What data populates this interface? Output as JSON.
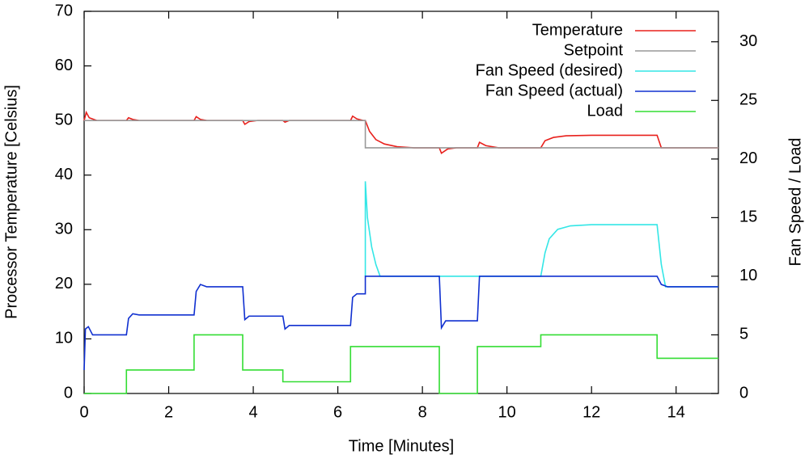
{
  "chart_data": {
    "type": "line",
    "xlabel": "Time [Minutes]",
    "ylabel": "Processor Temperature [Celsius]",
    "y2label": "Fan Speed / Load",
    "xlim": [
      0,
      15
    ],
    "xticks": [
      0,
      2,
      4,
      6,
      8,
      10,
      12,
      14
    ],
    "ylim": [
      0,
      70
    ],
    "yticks": [
      0,
      10,
      20,
      30,
      40,
      50,
      60,
      70
    ],
    "y2lim": [
      0,
      32.6
    ],
    "y2ticks": [
      0,
      5,
      10,
      15,
      20,
      25,
      30
    ],
    "legend": "top-right",
    "series": [
      {
        "name": "Temperature",
        "color": "#e8201c",
        "x": [
          0,
          0.05,
          0.12,
          0.3,
          1.0,
          1.05,
          1.15,
          1.3,
          2.6,
          2.65,
          2.75,
          2.9,
          3.75,
          3.8,
          3.9,
          4.1,
          4.7,
          4.75,
          4.85,
          5.0,
          6.3,
          6.35,
          6.45,
          6.6,
          6.65,
          6.75,
          6.9,
          7.1,
          7.4,
          7.8,
          8.4,
          8.45,
          8.6,
          8.8,
          9.3,
          9.35,
          9.5,
          9.8,
          10.8,
          10.9,
          11.1,
          11.4,
          12,
          13.55,
          13.65,
          13.8,
          15
        ],
        "values": [
          50,
          51.5,
          50.5,
          50,
          50,
          50.5,
          50.2,
          50,
          50,
          50.7,
          50.2,
          50,
          50,
          49.3,
          49.8,
          50,
          50,
          49.7,
          50,
          50,
          50,
          50.8,
          50.3,
          50,
          50,
          48,
          46.5,
          45.7,
          45.2,
          45,
          45,
          44,
          44.8,
          45,
          45,
          46,
          45.4,
          45,
          45,
          46.3,
          46.9,
          47.2,
          47.3,
          47.3,
          45,
          45,
          45
        ]
      },
      {
        "name": "Setpoint",
        "color": "#999999",
        "x": [
          0,
          6.65,
          6.65,
          15
        ],
        "values": [
          50,
          50,
          45,
          45
        ]
      },
      {
        "name": "Fan Speed (desired)",
        "color": "#33e6e6",
        "axis": "y2",
        "x": [
          6.65,
          6.65,
          6.7,
          6.8,
          6.9,
          7.0,
          10.8,
          10.9,
          11.0,
          11.2,
          11.5,
          12,
          13.55,
          13.65,
          13.75,
          15
        ],
        "values": [
          10,
          18.1,
          15,
          12.5,
          11,
          10,
          10,
          12,
          13.2,
          14,
          14.3,
          14.4,
          14.4,
          11,
          9.1,
          9.1
        ]
      },
      {
        "name": "Fan Speed (actual)",
        "color": "#1030d0",
        "axis": "y2",
        "x": [
          0,
          0.03,
          0.1,
          0.2,
          0.35,
          1.0,
          1.05,
          1.15,
          1.3,
          2.6,
          2.65,
          2.75,
          2.9,
          3.75,
          3.8,
          3.9,
          4.1,
          4.7,
          4.75,
          4.85,
          5.0,
          6.3,
          6.35,
          6.45,
          6.65,
          6.65,
          8.4,
          8.45,
          8.55,
          8.7,
          9.3,
          9.35,
          13.55,
          13.65,
          13.8,
          15
        ],
        "values": [
          2,
          5.5,
          5.7,
          5.0,
          5.0,
          5.0,
          6.4,
          6.8,
          6.7,
          6.7,
          8.7,
          9.3,
          9.1,
          9.1,
          6.3,
          6.6,
          6.6,
          6.6,
          5.5,
          5.8,
          5.8,
          5.8,
          8.2,
          8.5,
          8.5,
          10,
          10,
          5.6,
          6.2,
          6.2,
          6.2,
          10,
          10,
          9.3,
          9.1,
          9.1
        ]
      },
      {
        "name": "Load",
        "color": "#33dd33",
        "axis": "y2",
        "x": [
          0,
          1,
          1,
          2.6,
          2.6,
          3.75,
          3.75,
          4.7,
          4.7,
          6.3,
          6.3,
          8.4,
          8.4,
          9.3,
          9.3,
          10.8,
          10.8,
          13.55,
          13.55,
          15
        ],
        "values": [
          0,
          0,
          2,
          2,
          5,
          5,
          2,
          2,
          1,
          1,
          4,
          4,
          0,
          0,
          4,
          4,
          5,
          5,
          3,
          3
        ]
      }
    ]
  }
}
